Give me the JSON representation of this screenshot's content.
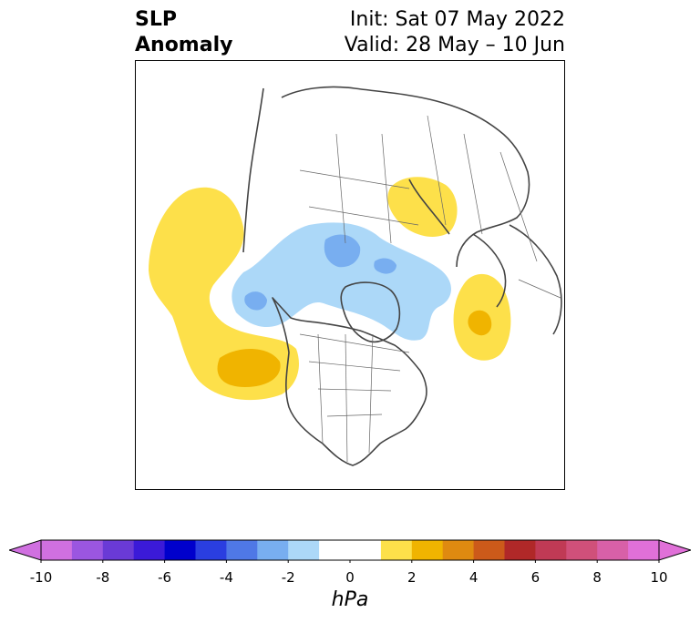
{
  "title": {
    "variable_line1": "SLP",
    "variable_line2": "Anomaly",
    "init_line": "Init: Sat 07 May 2022",
    "valid_line": "Valid: 28 May – 10 Jun"
  },
  "map": {
    "projection": "north polar stereographic",
    "features": [
      "coastlines",
      "country borders",
      "US state borders",
      "Canadian province borders"
    ]
  },
  "colorbar": {
    "unit": "hPa",
    "ticks": [
      "-10",
      "-8",
      "-6",
      "-4",
      "-2",
      "0",
      "2",
      "4",
      "6",
      "8",
      "10"
    ],
    "bins": [
      {
        "range": [
          -10,
          -9
        ],
        "color": "#d070e0"
      },
      {
        "range": [
          -9,
          -8
        ],
        "color": "#9b56e0"
      },
      {
        "range": [
          -8,
          -7
        ],
        "color": "#6a3ad6"
      },
      {
        "range": [
          -7,
          -6
        ],
        "color": "#3b1ad8"
      },
      {
        "range": [
          -6,
          -5
        ],
        "color": "#0000cc"
      },
      {
        "range": [
          -5,
          -4
        ],
        "color": "#2a3ee0"
      },
      {
        "range": [
          -4,
          -3
        ],
        "color": "#4f78e6"
      },
      {
        "range": [
          -3,
          -2
        ],
        "color": "#78aef0"
      },
      {
        "range": [
          -2,
          -1
        ],
        "color": "#acd8f8"
      },
      {
        "range": [
          -1,
          1
        ],
        "color": "#ffffff"
      },
      {
        "range": [
          1,
          2
        ],
        "color": "#fde04a"
      },
      {
        "range": [
          2,
          3
        ],
        "color": "#f0b400"
      },
      {
        "range": [
          3,
          4
        ],
        "color": "#df8a10"
      },
      {
        "range": [
          4,
          5
        ],
        "color": "#cc5a1a"
      },
      {
        "range": [
          5,
          6
        ],
        "color": "#b02828"
      },
      {
        "range": [
          6,
          7
        ],
        "color": "#c03a55"
      },
      {
        "range": [
          7,
          8
        ],
        "color": "#d0507a"
      },
      {
        "range": [
          8,
          9
        ],
        "color": "#d860a8"
      },
      {
        "range": [
          9,
          10
        ],
        "color": "#e070d8"
      }
    ],
    "extend": "both",
    "under_color": "#d070e0",
    "over_color": "#e070d8"
  },
  "anomaly_regions": [
    {
      "name": "north-pacific-positive",
      "level": "1 to 2 hPa",
      "color": "#fde04a"
    },
    {
      "name": "northeast-pacific-positive-core",
      "level": "2 to 3 hPa",
      "color": "#f0b400"
    },
    {
      "name": "siberia-positive",
      "level": "1 to 2 hPa",
      "color": "#fde04a"
    },
    {
      "name": "north-atlantic-positive",
      "level": "1 to 2 hPa",
      "color": "#fde04a"
    },
    {
      "name": "north-atlantic-positive-core",
      "level": "2 to 3 hPa",
      "color": "#f0b400"
    },
    {
      "name": "arctic-negative",
      "level": "-2 to -1 hPa",
      "color": "#acd8f8"
    },
    {
      "name": "arctic-negative-core",
      "level": "-3 to -2 hPa",
      "color": "#78aef0"
    }
  ]
}
